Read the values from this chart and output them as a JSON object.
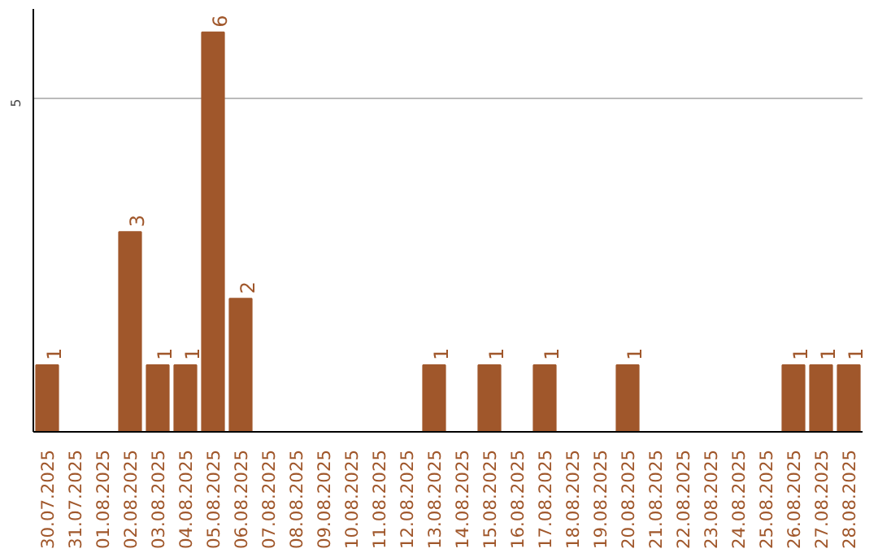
{
  "chart_data": {
    "type": "bar",
    "categories": [
      "30.07.2025",
      "31.07.2025",
      "01.08.2025",
      "02.08.2025",
      "03.08.2025",
      "04.08.2025",
      "05.08.2025",
      "06.08.2025",
      "07.08.2025",
      "08.08.2025",
      "09.08.2025",
      "10.08.2025",
      "11.08.2025",
      "12.08.2025",
      "13.08.2025",
      "14.08.2025",
      "15.08.2025",
      "16.08.2025",
      "17.08.2025",
      "18.08.2025",
      "19.08.2025",
      "20.08.2025",
      "21.08.2025",
      "22.08.2025",
      "23.08.2025",
      "24.08.2025",
      "25.08.2025",
      "26.08.2025",
      "27.08.2025",
      "28.08.2025"
    ],
    "values": [
      1,
      0,
      0,
      3,
      1,
      1,
      6,
      2,
      0,
      0,
      0,
      0,
      0,
      0,
      1,
      0,
      1,
      0,
      1,
      0,
      0,
      1,
      0,
      0,
      0,
      0,
      0,
      1,
      1,
      1
    ],
    "value_labels": [
      "1",
      null,
      null,
      "3",
      "1",
      "1",
      "6",
      "2",
      null,
      null,
      null,
      null,
      null,
      null,
      "1",
      null,
      "1",
      null,
      "1",
      null,
      null,
      "1",
      null,
      null,
      null,
      null,
      null,
      "1",
      "1",
      "1"
    ],
    "color": "#a0572b",
    "ylim": [
      0,
      6.35
    ],
    "yticks": [
      5
    ],
    "grid": "y"
  }
}
